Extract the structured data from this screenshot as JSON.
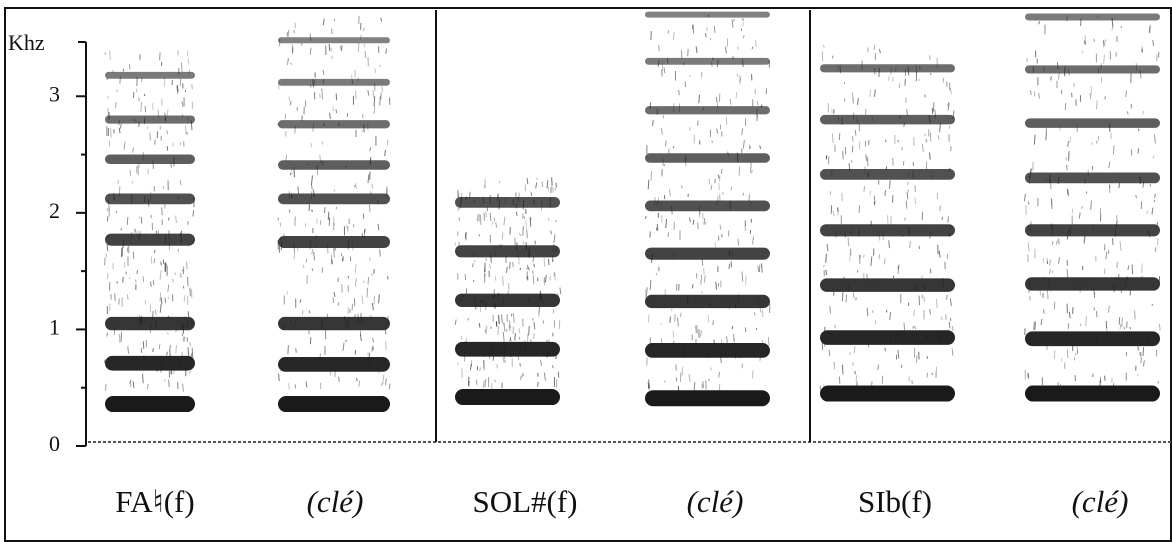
{
  "axis": {
    "label": "Khz",
    "ticks": [
      0,
      1,
      2,
      3
    ],
    "lim": [
      0,
      3.74
    ]
  },
  "panels": [
    {
      "columns": [
        {
          "label": "FA♮(f)",
          "bands": [
            0.36,
            0.71,
            1.05,
            1.77,
            2.12,
            2.46,
            2.8,
            3.18
          ]
        },
        {
          "label": "(clé)",
          "bands": [
            0.36,
            0.7,
            1.05,
            1.75,
            2.12,
            2.41,
            2.76,
            3.12,
            3.48
          ]
        }
      ]
    },
    {
      "columns": [
        {
          "label": "SOL#(f)",
          "bands": [
            0.42,
            0.83,
            1.25,
            1.67,
            2.09
          ]
        },
        {
          "label": "(clé)",
          "bands": [
            0.41,
            0.82,
            1.24,
            1.65,
            2.06,
            2.47,
            2.88,
            3.3,
            3.7
          ]
        }
      ]
    },
    {
      "columns": [
        {
          "label": "SIb(f)",
          "bands": [
            0.45,
            0.93,
            1.38,
            1.85,
            2.33,
            2.8,
            3.24
          ]
        },
        {
          "label": "(clé)",
          "bands": [
            0.45,
            0.92,
            1.39,
            1.85,
            2.3,
            2.77,
            3.23,
            3.68
          ]
        }
      ]
    }
  ]
}
